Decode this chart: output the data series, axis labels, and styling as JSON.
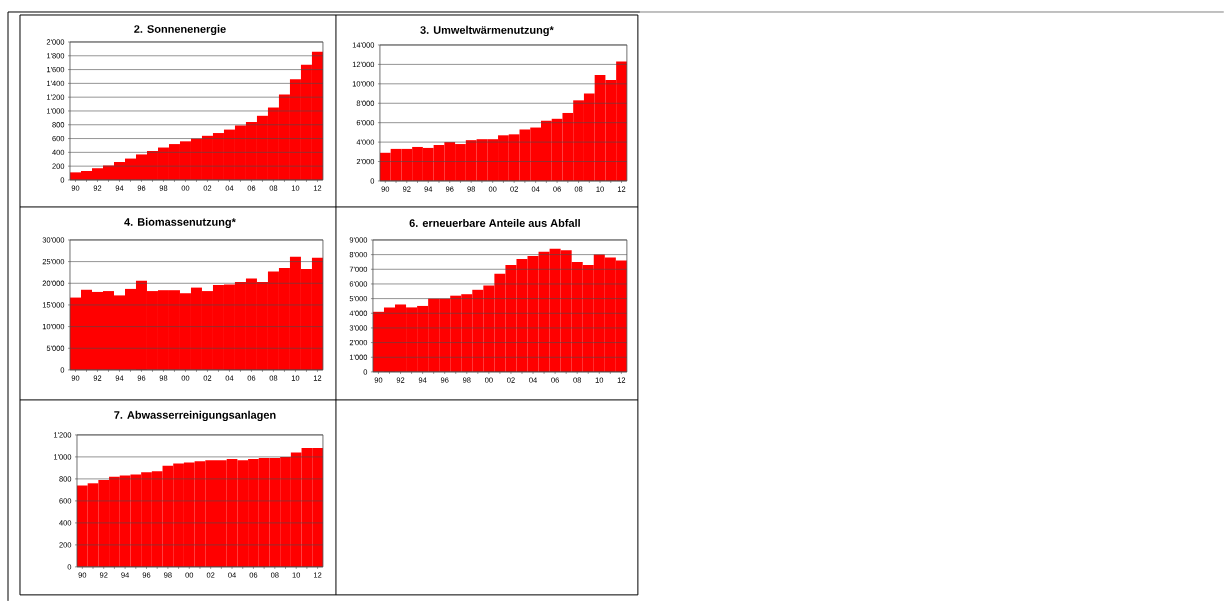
{
  "chart_data": [
    {
      "type": "bar",
      "title": "2. Sonnenenergie",
      "categories": [
        "90",
        null,
        "92",
        null,
        "94",
        null,
        "96",
        null,
        "98",
        null,
        "00",
        null,
        "02",
        null,
        "04",
        null,
        "06",
        null,
        "08",
        null,
        "10",
        null,
        "12"
      ],
      "values": [
        110,
        130,
        170,
        210,
        260,
        310,
        370,
        420,
        470,
        520,
        560,
        600,
        640,
        680,
        730,
        790,
        840,
        930,
        1050,
        1240,
        1460,
        1670,
        1860
      ],
      "color": "#ff0000",
      "ylim": [
        0,
        2000
      ],
      "yticks": [
        0,
        200,
        400,
        600,
        800,
        {
          "value": 1000,
          "label": "1'000"
        },
        {
          "value": 1200,
          "label": "1'200"
        },
        {
          "value": 1400,
          "label": "1'400"
        },
        {
          "value": 1600,
          "label": "1'600"
        },
        {
          "value": 1800,
          "label": "1'800"
        },
        {
          "value": 2000,
          "label": "2'000"
        }
      ],
      "grid": "y"
    },
    {
      "type": "bar",
      "title": "3. Umweltwärmenutzung*",
      "categories": [
        "90",
        null,
        "92",
        null,
        "94",
        null,
        "96",
        null,
        "98",
        null,
        "00",
        null,
        "02",
        null,
        "04",
        null,
        "06",
        null,
        "08",
        null,
        "10",
        null,
        "12"
      ],
      "values": [
        2900,
        3300,
        3300,
        3500,
        3400,
        3700,
        4000,
        3800,
        4200,
        4300,
        4300,
        4700,
        4800,
        5300,
        5500,
        6200,
        6400,
        7000,
        8300,
        9000,
        10900,
        10400,
        12300
      ],
      "color": "#ff0000",
      "ylim": [
        0,
        14000
      ],
      "yticks": [
        0,
        {
          "value": 2000,
          "label": "2'000"
        },
        {
          "value": 4000,
          "label": "4'000"
        },
        {
          "value": 6000,
          "label": "6'000"
        },
        {
          "value": 8000,
          "label": "8'000"
        },
        {
          "value": 10000,
          "label": "10'000"
        },
        {
          "value": 12000,
          "label": "12'000"
        },
        {
          "value": 14000,
          "label": "14'000"
        }
      ],
      "grid": "y"
    },
    {
      "type": "bar",
      "title": "4. Biomassenutzung*",
      "categories": [
        "90",
        null,
        "92",
        null,
        "94",
        null,
        "96",
        null,
        "98",
        null,
        "00",
        null,
        "02",
        null,
        "04",
        null,
        "06",
        null,
        "08",
        null,
        "10",
        null,
        "12"
      ],
      "values": [
        16700,
        18500,
        18000,
        18200,
        17200,
        18700,
        20600,
        18200,
        18400,
        18400,
        17700,
        19000,
        18200,
        19600,
        19700,
        20300,
        21100,
        20300,
        22700,
        23500,
        26100,
        23300,
        25900
      ],
      "color": "#ff0000",
      "ylim": [
        0,
        30000
      ],
      "yticks": [
        0,
        {
          "value": 5000,
          "label": "5'000"
        },
        {
          "value": 10000,
          "label": "10'000"
        },
        {
          "value": 15000,
          "label": "15'000"
        },
        {
          "value": 20000,
          "label": "20'000"
        },
        {
          "value": 25000,
          "label": "25'000"
        },
        {
          "value": 30000,
          "label": "30'000"
        }
      ],
      "grid": "y"
    },
    {
      "type": "bar",
      "title": "6. erneuerbare Anteile aus Abfall",
      "categories": [
        "90",
        null,
        "92",
        null,
        "94",
        null,
        "96",
        null,
        "98",
        null,
        "00",
        null,
        "02",
        null,
        "04",
        null,
        "06",
        null,
        "08",
        null,
        "10",
        null,
        "12"
      ],
      "values": [
        4100,
        4400,
        4600,
        4400,
        4500,
        5000,
        5000,
        5200,
        5300,
        5600,
        5900,
        6700,
        7300,
        7700,
        7900,
        8200,
        8400,
        8300,
        7500,
        7300,
        8000,
        7800,
        7600
      ],
      "color": "#ff0000",
      "ylim": [
        0,
        9000
      ],
      "yticks": [
        0,
        {
          "value": 1000,
          "label": "1'000"
        },
        {
          "value": 2000,
          "label": "2'000"
        },
        {
          "value": 3000,
          "label": "3'000"
        },
        {
          "value": 4000,
          "label": "4'000"
        },
        {
          "value": 5000,
          "label": "5'000"
        },
        {
          "value": 6000,
          "label": "6'000"
        },
        {
          "value": 7000,
          "label": "7'000"
        },
        {
          "value": 8000,
          "label": "8'000"
        },
        {
          "value": 9000,
          "label": "9'000"
        }
      ],
      "grid": "y"
    },
    {
      "type": "bar",
      "title": "7. Abwasserreinigungsanlagen",
      "categories": [
        "90",
        null,
        "92",
        null,
        "94",
        null,
        "96",
        null,
        "98",
        null,
        "00",
        null,
        "02",
        null,
        "04",
        null,
        "06",
        null,
        "08",
        null,
        "10",
        null,
        "12"
      ],
      "values": [
        740,
        760,
        790,
        820,
        830,
        840,
        860,
        870,
        920,
        940,
        950,
        960,
        970,
        970,
        980,
        970,
        980,
        990,
        990,
        1000,
        1040,
        1080,
        1080
      ],
      "color": "#ff0000",
      "ylim": [
        0,
        1200
      ],
      "yticks": [
        0,
        200,
        400,
        600,
        800,
        {
          "value": 1000,
          "label": "1'000"
        },
        {
          "value": 1200,
          "label": "1'200"
        }
      ],
      "grid": "y"
    }
  ]
}
